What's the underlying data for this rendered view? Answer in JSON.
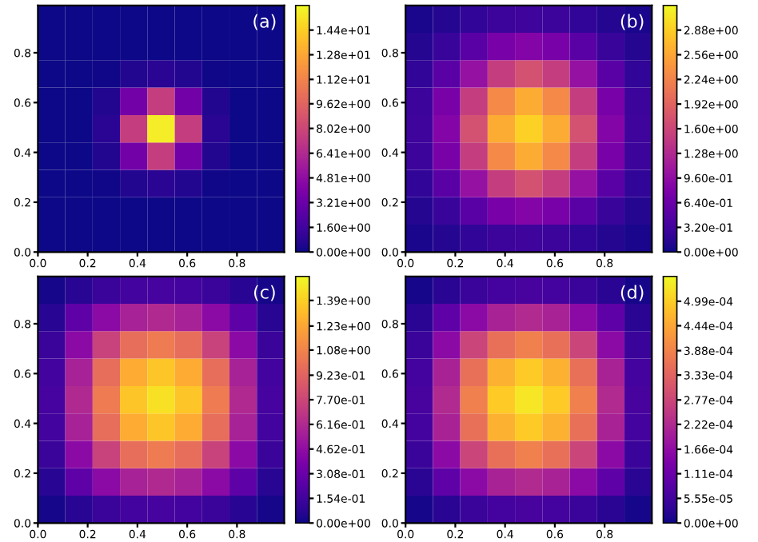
{
  "chart_data": [
    {
      "type": "heatmap",
      "annotations": [
        "(a)"
      ],
      "x": [
        0.055,
        0.165,
        0.275,
        0.385,
        0.495,
        0.605,
        0.715,
        0.825,
        0.935
      ],
      "y": [
        0.055,
        0.165,
        0.275,
        0.385,
        0.495,
        0.605,
        0.715,
        0.825,
        0.935
      ],
      "xlim": [
        0,
        0.99
      ],
      "ylim": [
        0,
        0.99
      ],
      "xticks": [
        {
          "value": 0,
          "label": "0.0"
        },
        {
          "value": 0.2,
          "label": "0.2"
        },
        {
          "value": 0.4,
          "label": "0.4"
        },
        {
          "value": 0.6,
          "label": "0.6"
        },
        {
          "value": 0.8,
          "label": "0.8"
        }
      ],
      "yticks": [
        {
          "value": 0,
          "label": "0.0"
        },
        {
          "value": 0.2,
          "label": "0.2"
        },
        {
          "value": 0.4,
          "label": "0.4"
        },
        {
          "value": 0.6,
          "label": "0.6"
        },
        {
          "value": 0.8,
          "label": "0.8"
        }
      ],
      "clim": [
        0,
        16.0
      ],
      "cticks": [
        {
          "value": 0,
          "label": "0.00e+00"
        },
        {
          "value": 1.6,
          "label": "1.60e+00"
        },
        {
          "value": 3.21,
          "label": "3.21e+00"
        },
        {
          "value": 4.81,
          "label": "4.81e+00"
        },
        {
          "value": 6.41,
          "label": "6.41e+00"
        },
        {
          "value": 8.02,
          "label": "8.02e+00"
        },
        {
          "value": 9.62,
          "label": "9.62e+00"
        },
        {
          "value": 11.2,
          "label": "1.12e+01"
        },
        {
          "value": 12.8,
          "label": "1.28e+01"
        },
        {
          "value": 14.4,
          "label": "1.44e+01"
        }
      ],
      "grid": false,
      "cells": [
        [
          0,
          0,
          0,
          0,
          0,
          0,
          0,
          0,
          0
        ],
        [
          0,
          0,
          0,
          0.03,
          0.05,
          0.03,
          0,
          0,
          0
        ],
        [
          0,
          0,
          0.1,
          0.5,
          0.8,
          0.5,
          0.1,
          0,
          0
        ],
        [
          0,
          0.03,
          0.5,
          3.5,
          7.5,
          3.5,
          0.5,
          0.03,
          0
        ],
        [
          0,
          0.05,
          0.8,
          7.5,
          15.5,
          7.5,
          0.8,
          0.05,
          0
        ],
        [
          0,
          0.03,
          0.5,
          3.5,
          7.5,
          3.5,
          0.5,
          0.03,
          0
        ],
        [
          0,
          0,
          0.1,
          0.5,
          0.8,
          0.5,
          0.1,
          0,
          0
        ],
        [
          0,
          0,
          0,
          0.03,
          0.05,
          0.03,
          0,
          0,
          0
        ],
        [
          0,
          0,
          0,
          0,
          0,
          0,
          0,
          0,
          0
        ]
      ]
    },
    {
      "type": "heatmap",
      "annotations": [
        "(b)"
      ],
      "x": [
        0.055,
        0.165,
        0.275,
        0.385,
        0.495,
        0.605,
        0.715,
        0.825,
        0.935
      ],
      "y": [
        0.055,
        0.165,
        0.275,
        0.385,
        0.495,
        0.605,
        0.715,
        0.825,
        0.935
      ],
      "xlim": [
        0,
        0.99
      ],
      "ylim": [
        0,
        0.99
      ],
      "xticks": [
        {
          "value": 0,
          "label": "0.0"
        },
        {
          "value": 0.2,
          "label": "0.2"
        },
        {
          "value": 0.4,
          "label": "0.4"
        },
        {
          "value": 0.6,
          "label": "0.6"
        },
        {
          "value": 0.8,
          "label": "0.8"
        }
      ],
      "yticks": [
        {
          "value": 0,
          "label": "0.0"
        },
        {
          "value": 0.2,
          "label": "0.2"
        },
        {
          "value": 0.4,
          "label": "0.4"
        },
        {
          "value": 0.6,
          "label": "0.6"
        },
        {
          "value": 0.8,
          "label": "0.8"
        }
      ],
      "clim": [
        0,
        3.2
      ],
      "cticks": [
        {
          "value": 0,
          "label": "0.00e+00"
        },
        {
          "value": 0.32,
          "label": "3.20e-01"
        },
        {
          "value": 0.64,
          "label": "6.40e-01"
        },
        {
          "value": 0.96,
          "label": "9.60e-01"
        },
        {
          "value": 1.28,
          "label": "1.28e+00"
        },
        {
          "value": 1.6,
          "label": "1.60e+00"
        },
        {
          "value": 1.92,
          "label": "1.92e+00"
        },
        {
          "value": 2.24,
          "label": "2.24e+00"
        },
        {
          "value": 2.56,
          "label": "2.56e+00"
        },
        {
          "value": 2.88,
          "label": "2.88e+00"
        }
      ],
      "grid": false,
      "cells": [
        [
          0.05,
          0.12,
          0.2,
          0.28,
          0.3,
          0.28,
          0.2,
          0.12,
          0.05
        ],
        [
          0.12,
          0.25,
          0.5,
          0.75,
          0.85,
          0.75,
          0.5,
          0.25,
          0.12
        ],
        [
          0.2,
          0.5,
          1.0,
          1.5,
          1.7,
          1.5,
          1.0,
          0.5,
          0.2
        ],
        [
          0.28,
          0.75,
          1.5,
          2.3,
          2.6,
          2.3,
          1.5,
          0.75,
          0.28
        ],
        [
          0.3,
          0.85,
          1.7,
          2.6,
          2.9,
          2.6,
          1.7,
          0.85,
          0.3
        ],
        [
          0.28,
          0.75,
          1.5,
          2.3,
          2.6,
          2.3,
          1.5,
          0.75,
          0.28
        ],
        [
          0.2,
          0.5,
          1.0,
          1.5,
          1.7,
          1.5,
          1.0,
          0.5,
          0.2
        ],
        [
          0.12,
          0.25,
          0.5,
          0.75,
          0.85,
          0.75,
          0.5,
          0.25,
          0.12
        ],
        [
          0.05,
          0.12,
          0.2,
          0.28,
          0.3,
          0.28,
          0.2,
          0.12,
          0.05
        ]
      ]
    },
    {
      "type": "heatmap",
      "annotations": [
        "(c)"
      ],
      "x": [
        0.055,
        0.165,
        0.275,
        0.385,
        0.495,
        0.605,
        0.715,
        0.825,
        0.935
      ],
      "y": [
        0.055,
        0.165,
        0.275,
        0.385,
        0.495,
        0.605,
        0.715,
        0.825,
        0.935
      ],
      "xlim": [
        0,
        0.99
      ],
      "ylim": [
        0,
        0.99
      ],
      "xticks": [
        {
          "value": 0,
          "label": "0.0"
        },
        {
          "value": 0.2,
          "label": "0.2"
        },
        {
          "value": 0.4,
          "label": "0.4"
        },
        {
          "value": 0.6,
          "label": "0.6"
        },
        {
          "value": 0.8,
          "label": "0.8"
        }
      ],
      "yticks": [
        {
          "value": 0,
          "label": "0.0"
        },
        {
          "value": 0.2,
          "label": "0.2"
        },
        {
          "value": 0.4,
          "label": "0.4"
        },
        {
          "value": 0.6,
          "label": "0.6"
        },
        {
          "value": 0.8,
          "label": "0.8"
        }
      ],
      "clim": [
        0,
        1.54
      ],
      "cticks": [
        {
          "value": 0,
          "label": "0.00e+00"
        },
        {
          "value": 0.154,
          "label": "1.54e-01"
        },
        {
          "value": 0.308,
          "label": "3.08e-01"
        },
        {
          "value": 0.462,
          "label": "4.62e-01"
        },
        {
          "value": 0.616,
          "label": "6.16e-01"
        },
        {
          "value": 0.77,
          "label": "7.70e-01"
        },
        {
          "value": 0.923,
          "label": "9.23e-01"
        },
        {
          "value": 1.08,
          "label": "1.08e+00"
        },
        {
          "value": 1.23,
          "label": "1.23e+00"
        },
        {
          "value": 1.39,
          "label": "1.39e+00"
        }
      ],
      "grid": false,
      "cells": [
        [
          0.02,
          0.07,
          0.13,
          0.16,
          0.17,
          0.16,
          0.13,
          0.07,
          0.02
        ],
        [
          0.07,
          0.26,
          0.44,
          0.57,
          0.61,
          0.57,
          0.44,
          0.26,
          0.07
        ],
        [
          0.13,
          0.44,
          0.75,
          0.97,
          1.04,
          0.97,
          0.75,
          0.44,
          0.13
        ],
        [
          0.16,
          0.57,
          0.97,
          1.25,
          1.35,
          1.25,
          0.97,
          0.57,
          0.16
        ],
        [
          0.17,
          0.61,
          1.04,
          1.35,
          1.45,
          1.35,
          1.04,
          0.61,
          0.17
        ],
        [
          0.16,
          0.57,
          0.97,
          1.25,
          1.35,
          1.25,
          0.97,
          0.57,
          0.16
        ],
        [
          0.13,
          0.44,
          0.75,
          0.97,
          1.04,
          0.97,
          0.75,
          0.44,
          0.13
        ],
        [
          0.07,
          0.26,
          0.44,
          0.57,
          0.61,
          0.57,
          0.44,
          0.26,
          0.07
        ],
        [
          0.02,
          0.07,
          0.13,
          0.16,
          0.17,
          0.16,
          0.13,
          0.07,
          0.02
        ]
      ]
    },
    {
      "type": "heatmap",
      "annotations": [
        "(d)"
      ],
      "x": [
        0.055,
        0.165,
        0.275,
        0.385,
        0.495,
        0.605,
        0.715,
        0.825,
        0.935
      ],
      "y": [
        0.055,
        0.165,
        0.275,
        0.385,
        0.495,
        0.605,
        0.715,
        0.825,
        0.935
      ],
      "xlim": [
        0,
        0.99
      ],
      "ylim": [
        0,
        0.99
      ],
      "xticks": [
        {
          "value": 0,
          "label": "0.0"
        },
        {
          "value": 0.2,
          "label": "0.2"
        },
        {
          "value": 0.4,
          "label": "0.4"
        },
        {
          "value": 0.6,
          "label": "0.6"
        },
        {
          "value": 0.8,
          "label": "0.8"
        }
      ],
      "yticks": [
        {
          "value": 0,
          "label": "0.0"
        },
        {
          "value": 0.2,
          "label": "0.2"
        },
        {
          "value": 0.4,
          "label": "0.4"
        },
        {
          "value": 0.6,
          "label": "0.6"
        },
        {
          "value": 0.8,
          "label": "0.8"
        }
      ],
      "clim": [
        0,
        0.000555
      ],
      "cticks": [
        {
          "value": 0,
          "label": "0.00e+00"
        },
        {
          "value": 5.55e-05,
          "label": "5.55e-05"
        },
        {
          "value": 0.000111,
          "label": "1.11e-04"
        },
        {
          "value": 0.000166,
          "label": "1.66e-04"
        },
        {
          "value": 0.000222,
          "label": "2.22e-04"
        },
        {
          "value": 0.000277,
          "label": "2.77e-04"
        },
        {
          "value": 0.000333,
          "label": "3.33e-04"
        },
        {
          "value": 0.000388,
          "label": "3.88e-04"
        },
        {
          "value": 0.000444,
          "label": "4.44e-04"
        },
        {
          "value": 0.000499,
          "label": "4.99e-04"
        }
      ],
      "grid": false,
      "cells": [
        [
          8e-06,
          2.7e-05,
          4.6e-05,
          5.9e-05,
          6.4e-05,
          5.9e-05,
          4.6e-05,
          2.7e-05,
          8e-06
        ],
        [
          2.7e-05,
          9.4e-05,
          0.00016,
          0.000207,
          0.000223,
          0.000207,
          0.00016,
          9.4e-05,
          2.7e-05
        ],
        [
          4.6e-05,
          0.00016,
          0.000275,
          0.000355,
          0.000382,
          0.000355,
          0.000275,
          0.00016,
          4.6e-05
        ],
        [
          5.9e-05,
          0.000207,
          0.000355,
          0.000458,
          0.000493,
          0.000458,
          0.000355,
          0.000207,
          5.9e-05
        ],
        [
          6.4e-05,
          0.000223,
          0.000382,
          0.000493,
          0.00053,
          0.000493,
          0.000382,
          0.000223,
          6.4e-05
        ],
        [
          5.9e-05,
          0.000207,
          0.000355,
          0.000458,
          0.000493,
          0.000458,
          0.000355,
          0.000207,
          5.9e-05
        ],
        [
          4.6e-05,
          0.00016,
          0.000275,
          0.000355,
          0.000382,
          0.000355,
          0.000275,
          0.00016,
          4.6e-05
        ],
        [
          2.7e-05,
          9.4e-05,
          0.00016,
          0.000207,
          0.000223,
          0.000207,
          0.00016,
          9.4e-05,
          2.7e-05
        ],
        [
          8e-06,
          2.7e-05,
          4.6e-05,
          5.9e-05,
          6.4e-05,
          5.9e-05,
          4.6e-05,
          2.7e-05,
          8e-06
        ]
      ]
    }
  ]
}
